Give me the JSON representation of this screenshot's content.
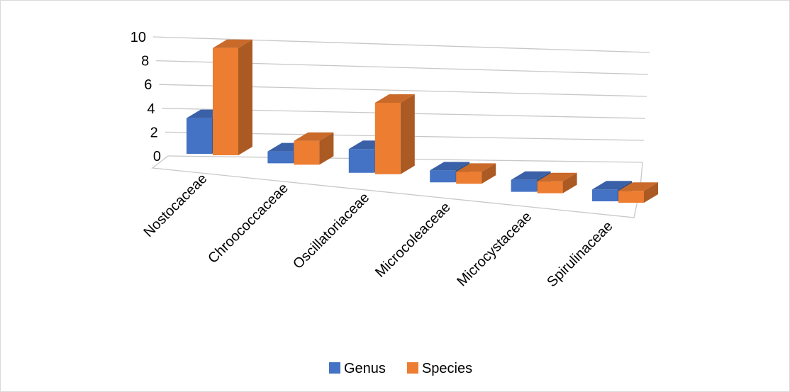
{
  "chart_data": {
    "type": "bar",
    "title": "",
    "xlabel": "",
    "ylabel": "",
    "ylim": [
      0,
      10
    ],
    "y_ticks": [
      "0",
      "2",
      "4",
      "6",
      "8",
      "10"
    ],
    "categories": [
      "Nostocaceae",
      "Chroococcaceae",
      "Oscillatoriaceae",
      "Microcoleaceae",
      "Microcystaceae",
      "Spirulinaceae"
    ],
    "series": [
      {
        "name": "Genus",
        "values": [
          3,
          1,
          2,
          1,
          1,
          1
        ],
        "color": "#4472c4"
      },
      {
        "name": "Species",
        "values": [
          9,
          2,
          6,
          1,
          1,
          1
        ],
        "color": "#ed7d31"
      }
    ],
    "grid": true,
    "legend_position": "bottom",
    "style": "3d-clustered-column"
  }
}
